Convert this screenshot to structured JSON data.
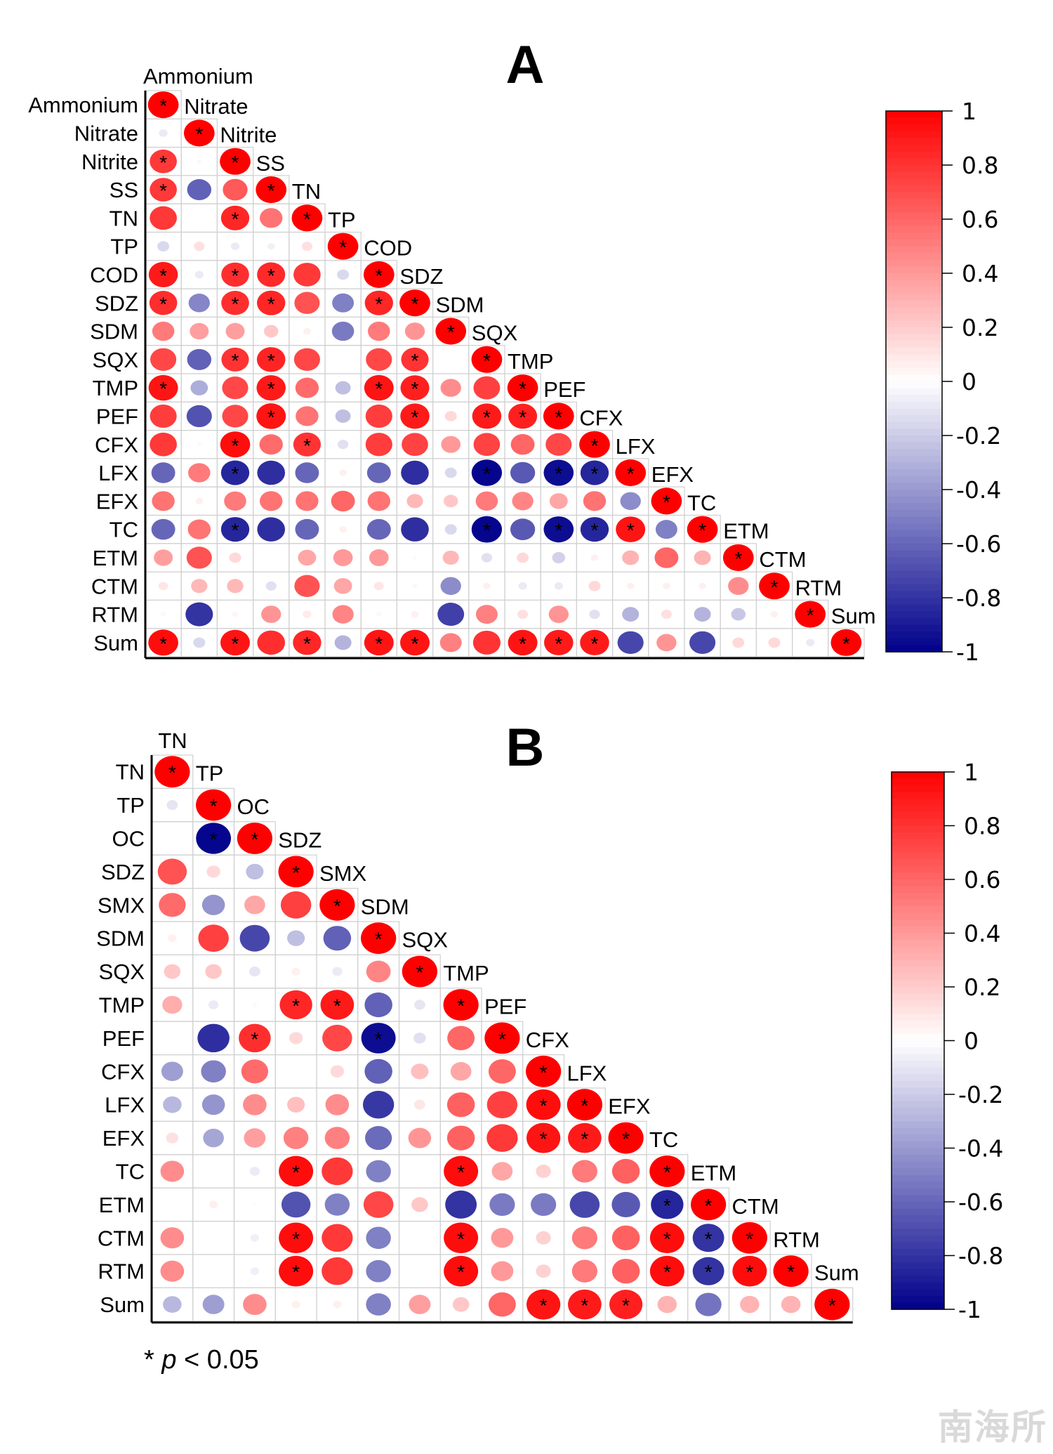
{
  "chart_data": [
    {
      "type": "heatmap",
      "subtype": "correlation-ellipse-lower-triangle",
      "title": "A",
      "variables": [
        "Ammonium",
        "Nitrate",
        "Nitrite",
        "SS",
        "TN",
        "TP",
        "COD",
        "SDZ",
        "SDM",
        "SQX",
        "TMP",
        "PEF",
        "CFX",
        "LFX",
        "EFX",
        "TC",
        "ETM",
        "CTM",
        "RTM",
        "Sum"
      ],
      "rows": [
        {
          "v": [
            1
          ],
          "s": [
            1
          ]
        },
        {
          "v": [
            -0.08,
            1
          ],
          "s": [
            0,
            1
          ]
        },
        {
          "v": [
            0.78,
            0.03,
            1
          ],
          "s": [
            1,
            0,
            1
          ]
        },
        {
          "v": [
            0.78,
            -0.62,
            0.65,
            1
          ],
          "s": [
            1,
            0,
            0,
            1
          ]
        },
        {
          "v": [
            0.78,
            0,
            0.85,
            0.55,
            1
          ],
          "s": [
            0,
            0,
            1,
            0,
            1
          ]
        },
        {
          "v": [
            -0.15,
            0.12,
            -0.08,
            -0.06,
            0.12,
            1
          ],
          "s": [
            0,
            0,
            0,
            0,
            0,
            1
          ]
        },
        {
          "v": [
            0.9,
            -0.08,
            0.82,
            0.84,
            0.78,
            -0.15,
            1
          ],
          "s": [
            1,
            0,
            1,
            1,
            0,
            0,
            1
          ]
        },
        {
          "v": [
            0.82,
            -0.48,
            0.82,
            0.85,
            0.68,
            -0.5,
            0.85,
            1
          ],
          "s": [
            1,
            0,
            1,
            1,
            0,
            0,
            1,
            1
          ]
        },
        {
          "v": [
            0.52,
            0.38,
            0.38,
            0.22,
            0.06,
            -0.52,
            0.52,
            0.42,
            1
          ],
          "s": [
            0,
            0,
            0,
            0,
            0,
            0,
            0,
            0,
            1
          ]
        },
        {
          "v": [
            0.72,
            -0.62,
            0.8,
            0.86,
            0.72,
            0,
            0.72,
            0.8,
            0,
            1
          ],
          "s": [
            0,
            0,
            1,
            1,
            0,
            0,
            0,
            1,
            0,
            1
          ]
        },
        {
          "v": [
            0.92,
            -0.32,
            0.72,
            0.9,
            0.58,
            -0.25,
            0.92,
            0.88,
            0.45,
            0.75,
            1
          ],
          "s": [
            1,
            0,
            0,
            1,
            0,
            0,
            1,
            1,
            0,
            0,
            1
          ]
        },
        {
          "v": [
            0.76,
            -0.68,
            0.72,
            0.92,
            0.55,
            -0.25,
            0.76,
            0.9,
            0.15,
            0.9,
            0.88,
            1
          ],
          "s": [
            0,
            0,
            0,
            1,
            0,
            0,
            0,
            1,
            0,
            1,
            1,
            1
          ]
        },
        {
          "v": [
            0.78,
            -0.02,
            0.95,
            0.58,
            0.8,
            -0.12,
            0.76,
            0.74,
            0.4,
            0.74,
            0.6,
            0.72,
            1
          ],
          "s": [
            0,
            0,
            1,
            0,
            1,
            0,
            0,
            0,
            0,
            0,
            0,
            0,
            1
          ]
        },
        {
          "v": [
            -0.6,
            0.52,
            -0.85,
            -0.82,
            -0.6,
            0.06,
            -0.6,
            -0.82,
            -0.15,
            -0.98,
            -0.65,
            -0.95,
            -0.85,
            1
          ],
          "s": [
            0,
            0,
            1,
            0,
            0,
            0,
            0,
            0,
            0,
            1,
            0,
            1,
            1,
            1
          ]
        },
        {
          "v": [
            0.55,
            0.06,
            0.52,
            0.55,
            0.55,
            0.6,
            0.55,
            0.28,
            0.22,
            0.52,
            0.48,
            0.35,
            0.55,
            -0.45,
            1
          ],
          "s": [
            0,
            0,
            0,
            0,
            0,
            0,
            0,
            0,
            0,
            0,
            0,
            0,
            0,
            0,
            1
          ]
        },
        {
          "v": [
            -0.6,
            0.55,
            -0.85,
            -0.82,
            -0.6,
            0.06,
            -0.6,
            -0.82,
            -0.15,
            -0.98,
            -0.65,
            -0.95,
            -0.85,
            0.92,
            -0.5,
            1
          ],
          "s": [
            0,
            0,
            1,
            0,
            0,
            0,
            0,
            0,
            0,
            1,
            0,
            1,
            1,
            1,
            0,
            1
          ]
        },
        {
          "v": [
            0.38,
            0.68,
            0.15,
            0,
            0.35,
            0.4,
            0.4,
            0.02,
            0.28,
            -0.12,
            0.15,
            -0.18,
            0.06,
            0.3,
            0.6,
            0.3,
            1
          ],
          "s": [
            0,
            0,
            0,
            0,
            0,
            0,
            0,
            0,
            0,
            0,
            0,
            0,
            0,
            0,
            0,
            0,
            1
          ]
        },
        {
          "v": [
            0.1,
            0.28,
            0.28,
            -0.12,
            0.68,
            0.35,
            0.1,
            0.03,
            -0.45,
            0.06,
            -0.08,
            -0.08,
            0.15,
            0.06,
            0.06,
            0.06,
            0.45,
            1
          ],
          "s": [
            0,
            0,
            0,
            0,
            0,
            0,
            0,
            0,
            0,
            0,
            0,
            0,
            0,
            0,
            0,
            0,
            0,
            1
          ]
        },
        {
          "v": [
            0.03,
            -0.8,
            0.04,
            0.42,
            0.08,
            0.48,
            0.03,
            0.06,
            -0.75,
            0.5,
            0.12,
            0.42,
            -0.12,
            -0.3,
            0.12,
            -0.3,
            -0.22,
            0.06,
            1
          ],
          "s": [
            0,
            0,
            0,
            0,
            0,
            0,
            0,
            0,
            0,
            0,
            0,
            0,
            0,
            0,
            0,
            0,
            0,
            0,
            1
          ]
        },
        {
          "v": [
            0.95,
            -0.15,
            0.92,
            0.82,
            0.85,
            -0.3,
            0.92,
            0.92,
            0.5,
            0.8,
            0.92,
            0.9,
            0.9,
            -0.72,
            0.42,
            -0.72,
            0.15,
            0.15,
            -0.08,
            1
          ],
          "s": [
            1,
            0,
            1,
            0,
            1,
            0,
            1,
            1,
            0,
            0,
            1,
            1,
            1,
            0,
            0,
            0,
            0,
            0,
            0,
            1
          ]
        }
      ],
      "colorbar": {
        "ticks": [
          "1",
          "0.8",
          "0.6",
          "0.4",
          "0.2",
          "0",
          "-0.2",
          "-0.4",
          "-0.6",
          "-0.8",
          "-1"
        ],
        "range": [
          -1,
          1
        ],
        "low_color": "#00008b",
        "mid_color": "#ffffff",
        "high_color": "#ff0000"
      }
    },
    {
      "type": "heatmap",
      "subtype": "correlation-ellipse-lower-triangle",
      "title": "B",
      "variables": [
        "TN",
        "TP",
        "OC",
        "SDZ",
        "SMX",
        "SDM",
        "SQX",
        "TMP",
        "PEF",
        "CFX",
        "LFX",
        "EFX",
        "TC",
        "ETM",
        "CTM",
        "RTM",
        "Sum"
      ],
      "rows": [
        {
          "v": [
            1
          ],
          "s": [
            1
          ]
        },
        {
          "v": [
            -0.1,
            1
          ],
          "s": [
            0,
            1
          ]
        },
        {
          "v": [
            0,
            -0.98,
            1
          ],
          "s": [
            0,
            1,
            1
          ]
        },
        {
          "v": [
            0.68,
            0.15,
            -0.25,
            1
          ],
          "s": [
            0,
            0,
            0,
            1
          ]
        },
        {
          "v": [
            0.58,
            -0.42,
            0.35,
            0.75,
            1
          ],
          "s": [
            0,
            0,
            0,
            0,
            1
          ]
        },
        {
          "v": [
            0.06,
            0.75,
            -0.72,
            -0.25,
            -0.62,
            1
          ],
          "s": [
            0,
            0,
            0,
            0,
            0,
            1
          ]
        },
        {
          "v": [
            0.22,
            0.22,
            -0.1,
            0.06,
            -0.08,
            0.48,
            1
          ],
          "s": [
            0,
            0,
            0,
            0,
            0,
            0,
            1
          ]
        },
        {
          "v": [
            0.32,
            -0.08,
            0.02,
            0.85,
            0.9,
            -0.62,
            -0.1,
            1
          ],
          "s": [
            0,
            0,
            0,
            1,
            1,
            0,
            0,
            1
          ]
        },
        {
          "v": [
            0,
            -0.82,
            0.82,
            0.15,
            0.72,
            -0.95,
            -0.12,
            0.6,
            1
          ],
          "s": [
            0,
            0,
            1,
            0,
            0,
            1,
            0,
            0,
            1
          ]
        },
        {
          "v": [
            -0.38,
            -0.5,
            0.58,
            0,
            0.15,
            -0.62,
            0.25,
            0.35,
            0.6,
            1
          ],
          "s": [
            0,
            0,
            0,
            0,
            0,
            0,
            0,
            0,
            0,
            1
          ]
        },
        {
          "v": [
            -0.28,
            -0.42,
            0.45,
            0.25,
            0.45,
            -0.78,
            0.1,
            0.62,
            0.75,
            0.95,
            1
          ],
          "s": [
            0,
            0,
            0,
            0,
            0,
            0,
            0,
            0,
            0,
            1,
            1
          ]
        },
        {
          "v": [
            0.12,
            -0.35,
            0.38,
            0.5,
            0.5,
            -0.58,
            0.42,
            0.62,
            0.78,
            0.92,
            0.9,
            1
          ],
          "s": [
            0,
            0,
            0,
            0,
            0,
            0,
            0,
            0,
            0,
            1,
            1,
            1
          ]
        },
        {
          "v": [
            0.45,
            0,
            -0.08,
            0.95,
            0.78,
            -0.5,
            0,
            0.95,
            0.35,
            0.18,
            0.52,
            0.62,
            1
          ],
          "s": [
            0,
            0,
            0,
            1,
            0,
            0,
            0,
            1,
            0,
            0,
            0,
            0,
            1
          ]
        },
        {
          "v": [
            0,
            0.06,
            0.01,
            -0.68,
            -0.5,
            0.72,
            0.22,
            -0.8,
            -0.52,
            -0.52,
            -0.72,
            -0.65,
            -0.85,
            1
          ],
          "s": [
            0,
            0,
            0,
            0,
            0,
            0,
            0,
            0,
            0,
            0,
            0,
            0,
            1,
            1
          ]
        },
        {
          "v": [
            0.45,
            0,
            -0.06,
            0.95,
            0.78,
            -0.5,
            0,
            0.95,
            0.4,
            0.18,
            0.52,
            0.62,
            0.95,
            -0.8,
            1
          ],
          "s": [
            0,
            0,
            0,
            1,
            0,
            0,
            0,
            1,
            0,
            0,
            0,
            0,
            1,
            1,
            1
          ]
        },
        {
          "v": [
            0.45,
            0,
            -0.06,
            0.95,
            0.78,
            -0.5,
            0,
            0.95,
            0.4,
            0.18,
            0.52,
            0.62,
            0.95,
            -0.8,
            0.95,
            1
          ],
          "s": [
            0,
            0,
            0,
            1,
            0,
            0,
            0,
            1,
            0,
            0,
            0,
            0,
            1,
            1,
            1,
            1
          ]
        },
        {
          "v": [
            -0.28,
            -0.38,
            0.45,
            0.06,
            0.06,
            -0.5,
            0.38,
            0.22,
            0.6,
            0.92,
            0.9,
            0.88,
            0.3,
            -0.55,
            0.3,
            0.3,
            1
          ],
          "s": [
            0,
            0,
            0,
            0,
            0,
            0,
            0,
            0,
            0,
            1,
            1,
            1,
            0,
            0,
            0,
            0,
            1
          ]
        }
      ],
      "colorbar": {
        "ticks": [
          "1",
          "0.8",
          "0.6",
          "0.4",
          "0.2",
          "0",
          "-0.2",
          "-0.4",
          "-0.6",
          "-0.8",
          "-1"
        ],
        "range": [
          -1,
          1
        ],
        "low_color": "#00008b",
        "mid_color": "#ffffff",
        "high_color": "#ff0000"
      }
    }
  ],
  "footnote": {
    "star": "*",
    "p": "p",
    "rest": " < 0.05"
  },
  "watermark": "南海所"
}
